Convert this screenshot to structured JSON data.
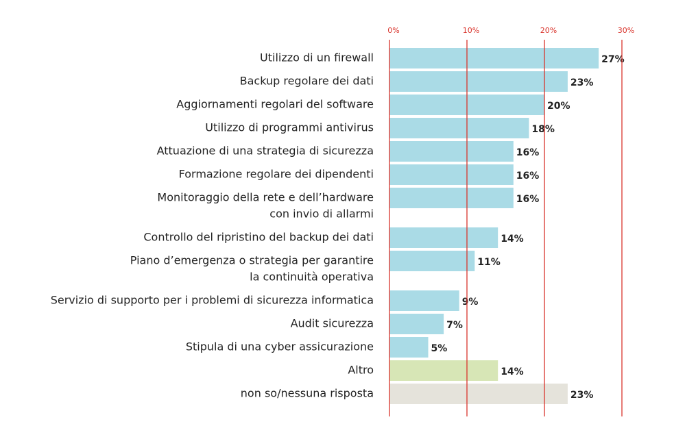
{
  "chart_data": {
    "type": "hbar",
    "categories": [
      "Utilizzo di un firewall",
      "Backup regolare dei dati",
      "Aggiornamenti regolari del software",
      "Utilizzo di programmi antivirus",
      "Attuazione di una strategia di sicurezza",
      "Formazione regolare dei dipendenti",
      [
        "Monitoraggio della rete e dell’hardware",
        "con invio di allarmi"
      ],
      "Controllo del ripristino del backup dei dati",
      [
        "Piano d’emergenza o strategia per garantire",
        "la continuità operativa"
      ],
      "Servizio di supporto per i problemi di sicurezza informatica",
      "Audit sicurezza",
      "Stipula di una cyber assicurazione",
      "Altro",
      "non so/nessuna risposta"
    ],
    "values": [
      27,
      23,
      20,
      18,
      16,
      16,
      16,
      14,
      11,
      9,
      7,
      5,
      14,
      23
    ],
    "value_labels": [
      "27%",
      "23%",
      "20%",
      "18%",
      "16%",
      "16%",
      "16%",
      "14%",
      "11%",
      "9%",
      "7%",
      "5%",
      "14%",
      "23%"
    ],
    "colors": [
      "#aadbe6",
      "#aadbe6",
      "#aadbe6",
      "#aadbe6",
      "#aadbe6",
      "#aadbe6",
      "#aadbe6",
      "#aadbe6",
      "#aadbe6",
      "#aadbe6",
      "#aadbe6",
      "#aadbe6",
      "#d7e6b6",
      "#e5e3db"
    ],
    "xlim": [
      0,
      30
    ],
    "xticks": [
      {
        "value": 0,
        "label": "0%"
      },
      {
        "value": 10,
        "label": "10%"
      },
      {
        "value": 20,
        "label": "20%"
      },
      {
        "value": 30,
        "label": "30%"
      }
    ],
    "grid": true,
    "grid_color": "#d9332b"
  }
}
